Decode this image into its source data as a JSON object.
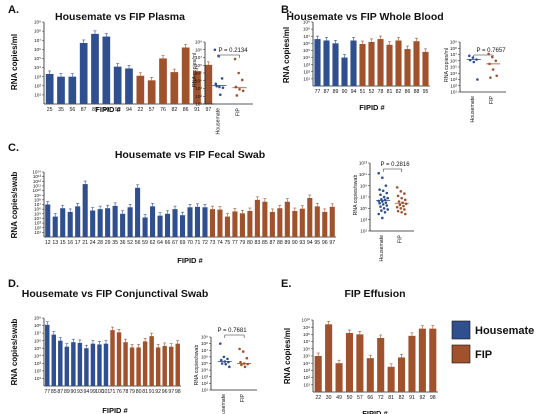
{
  "colors": {
    "housemate": "#2f4f8f",
    "fip": "#a0522d",
    "axis": "#222222"
  },
  "legend": {
    "items": [
      {
        "label": "Housemate",
        "color": "#2f4f8f"
      },
      {
        "label": "FIP",
        "color": "#a0522d"
      }
    ]
  },
  "chart_data": [
    {
      "id": "A",
      "panel_label": "A.",
      "type": "bar",
      "title": "Housemate vs FIP Plasma",
      "ylabel": "RNA copies/ml",
      "xlabel": "FIPID #",
      "log_scale": true,
      "ylim": [
        0,
        9
      ],
      "yticks": [
        "10¹",
        "10²",
        "10³",
        "10⁴",
        "10⁵",
        "10⁶",
        "10⁷",
        "10⁸",
        "10⁹"
      ],
      "categories": [
        "25",
        "35",
        "56",
        "87",
        "89",
        "90",
        "93",
        "94",
        "22",
        "57",
        "76",
        "82",
        "86",
        "91",
        "97"
      ],
      "groups": [
        "housemate",
        "housemate",
        "housemate",
        "housemate",
        "housemate",
        "housemate",
        "housemate",
        "housemate",
        "fip",
        "fip",
        "fip",
        "fip",
        "fip",
        "fip",
        "fip"
      ],
      "values": [
        3.3,
        3.0,
        3.0,
        6.7,
        7.7,
        7.4,
        4.1,
        3.9,
        3.1,
        2.6,
        5.0,
        3.5,
        6.2,
        3.6,
        4.3
      ]
    },
    {
      "id": "A2",
      "type": "scatter",
      "ylabel": "RNA copies/ml",
      "p_value": "P = 0.2134",
      "categories": [
        "Housemate",
        "FIP"
      ],
      "log_scale": true,
      "ylim": [
        1,
        9
      ],
      "yticks": [
        "10¹",
        "10²",
        "10³",
        "10⁴",
        "10⁵",
        "10⁶",
        "10⁷",
        "10⁸",
        "10⁹"
      ],
      "series": [
        {
          "name": "Housemate",
          "values": [
            8.0,
            7.2,
            4.3,
            3.6,
            3.2,
            3.1,
            3.3,
            2.2
          ],
          "median": 3.4
        },
        {
          "name": "FIP",
          "values": [
            6.8,
            5.0,
            4.1,
            3.2,
            2.9,
            2.7,
            2.1
          ],
          "median": 3.1
        }
      ]
    },
    {
      "id": "B",
      "panel_label": "B.",
      "type": "bar",
      "title": "Housemate vs FIP Whole Blood",
      "ylabel": "RNA copies/ml",
      "xlabel": "FIPID #",
      "log_scale": true,
      "ylim": [
        0,
        9
      ],
      "yticks": [
        "10¹",
        "10²",
        "10³",
        "10⁴",
        "10⁵",
        "10⁶",
        "10⁷",
        "10⁸",
        "10⁹"
      ],
      "categories": [
        "77",
        "87",
        "89",
        "90",
        "94",
        "51",
        "52",
        "78",
        "81",
        "82",
        "86",
        "88",
        "95"
      ],
      "groups": [
        "housemate",
        "housemate",
        "housemate",
        "housemate",
        "housemate",
        "fip",
        "fip",
        "fip",
        "fip",
        "fip",
        "fip",
        "fip",
        "fip"
      ],
      "values": [
        6.6,
        6.4,
        6.0,
        4.0,
        6.4,
        5.9,
        6.2,
        6.6,
        5.8,
        6.4,
        5.2,
        6.3,
        4.8
      ]
    },
    {
      "id": "B2",
      "type": "scatter",
      "ylabel": "RNA copies/ml",
      "p_value": "P = 0.7657",
      "categories": [
        "Housemate",
        "FIP"
      ],
      "log_scale": true,
      "ylim": [
        1,
        9
      ],
      "yticks": [
        "10¹",
        "10²",
        "10³",
        "10⁴",
        "10⁵",
        "10⁶",
        "10⁷",
        "10⁸",
        "10⁹"
      ],
      "series": [
        {
          "name": "Housemate",
          "values": [
            6.8,
            6.5,
            6.2,
            6.1,
            5.8,
            3.0
          ],
          "median": 6.2
        },
        {
          "name": "FIP",
          "values": [
            7.1,
            6.6,
            6.0,
            5.5,
            4.6,
            3.6,
            3.3
          ],
          "median": 5.5
        }
      ]
    },
    {
      "id": "C",
      "panel_label": "C.",
      "type": "bar",
      "title": "Housemate vs FIP Fecal Swab",
      "ylabel": "RNA copies/swab",
      "xlabel": "FIPID #",
      "log_scale": true,
      "ylim": [
        0,
        14
      ],
      "yticks": [
        "10¹",
        "10²",
        "10³",
        "10⁴",
        "10⁵",
        "10⁶",
        "10⁷",
        "10⁸",
        "10⁹",
        "10¹⁰",
        "10¹¹",
        "10¹²",
        "10¹³",
        "10¹⁴"
      ],
      "categories": [
        "12",
        "13",
        "15",
        "16",
        "17",
        "21",
        "24",
        "28",
        "29",
        "35",
        "36",
        "52",
        "56",
        "59",
        "62",
        "64",
        "66",
        "67",
        "69",
        "70",
        "71",
        "72",
        "73",
        "74",
        "75",
        "77",
        "79",
        "80",
        "83",
        "85",
        "87",
        "88",
        "89",
        "90",
        "93",
        "94",
        "95",
        "96",
        "97"
      ],
      "groups": [
        "housemate",
        "housemate",
        "housemate",
        "housemate",
        "housemate",
        "housemate",
        "housemate",
        "housemate",
        "housemate",
        "housemate",
        "housemate",
        "housemate",
        "housemate",
        "housemate",
        "housemate",
        "housemate",
        "housemate",
        "housemate",
        "housemate",
        "housemate",
        "housemate",
        "housemate",
        "fip",
        "fip",
        "fip",
        "fip",
        "fip",
        "fip",
        "fip",
        "fip",
        "fip",
        "fip",
        "fip",
        "fip",
        "fip",
        "fip",
        "fip",
        "fip",
        "fip"
      ],
      "values": [
        7.0,
        4.4,
        6.2,
        5.4,
        6.6,
        11.4,
        5.7,
        6.0,
        6.2,
        6.7,
        5.0,
        6.4,
        10.6,
        4.2,
        6.6,
        4.6,
        5.0,
        6.0,
        4.7,
        6.4,
        6.5,
        6.4,
        6.0,
        5.9,
        4.4,
        5.5,
        5.1,
        5.6,
        8.0,
        7.6,
        5.4,
        6.2,
        7.6,
        5.6,
        6.1,
        8.4,
        6.6,
        5.4,
        6.5
      ]
    },
    {
      "id": "C2",
      "type": "scatter",
      "ylabel": "RNA copies/swab",
      "p_value": "P = 0.2816",
      "categories": [
        "Housemate",
        "FIP"
      ],
      "log_scale": true,
      "ylim": [
        1,
        13
      ],
      "yticks": [
        "10¹",
        "10³",
        "10⁵",
        "10⁷",
        "10⁹",
        "10¹¹",
        "10¹³"
      ],
      "series": [
        {
          "name": "Housemate",
          "values": [
            11.2,
            10.4,
            9.0,
            8.3,
            8.1,
            7.7,
            7.4,
            7.0,
            6.8,
            6.6,
            6.5,
            6.3,
            6.2,
            6.0,
            5.9,
            5.7,
            5.5,
            5.3,
            5.0,
            4.8,
            4.6,
            4.3,
            4.0,
            3.3
          ],
          "median": 6.4
        },
        {
          "name": "FIP",
          "values": [
            8.7,
            8.0,
            7.6,
            7.2,
            6.8,
            6.5,
            6.2,
            6.0,
            5.8,
            5.6,
            5.4,
            5.2,
            5.0,
            4.8,
            4.5,
            4.3,
            4.0
          ],
          "median": 5.9
        }
      ]
    },
    {
      "id": "D",
      "panel_label": "D.",
      "type": "bar",
      "title": "Housemate vs FIP Conjunctival Swab",
      "ylabel": "RNA copies/swab",
      "xlabel": "FIPID #",
      "log_scale": true,
      "ylim": [
        0,
        9
      ],
      "yticks": [
        "10¹",
        "10²",
        "10³",
        "10⁴",
        "10⁵",
        "10⁶",
        "10⁷",
        "10⁸",
        "10⁹"
      ],
      "categories": [
        "77",
        "85",
        "87",
        "89",
        "90",
        "93",
        "94",
        "99",
        "100",
        "101",
        "71",
        "76",
        "78",
        "79",
        "80",
        "81",
        "91",
        "92",
        "96",
        "97",
        "98"
      ],
      "groups": [
        "housemate",
        "housemate",
        "housemate",
        "housemate",
        "housemate",
        "housemate",
        "housemate",
        "housemate",
        "housemate",
        "housemate",
        "fip",
        "fip",
        "fip",
        "fip",
        "fip",
        "fip",
        "fip",
        "fip",
        "fip",
        "fip",
        "fip"
      ],
      "values": [
        8.1,
        6.8,
        6.0,
        5.2,
        5.8,
        5.7,
        5.0,
        5.6,
        5.5,
        5.6,
        7.4,
        7.1,
        5.8,
        5.1,
        5.1,
        5.9,
        6.6,
        5.1,
        5.3,
        5.2,
        5.6
      ]
    },
    {
      "id": "D2",
      "type": "scatter",
      "ylabel": "RNA copies/swab",
      "p_value": "P = 0.7681",
      "categories": [
        "Housemate",
        "FIP"
      ],
      "log_scale": true,
      "ylim": [
        1,
        9
      ],
      "yticks": [
        "10¹",
        "10²",
        "10³",
        "10⁴",
        "10⁵",
        "10⁶",
        "10⁷",
        "10⁸",
        "10⁹"
      ],
      "series": [
        {
          "name": "Housemate",
          "values": [
            8.0,
            6.0,
            5.7,
            5.5,
            5.3,
            5.2,
            5.0,
            4.9,
            4.5
          ],
          "median": 5.3
        },
        {
          "name": "FIP",
          "values": [
            7.2,
            6.8,
            5.8,
            5.2,
            5.0,
            4.9,
            4.8,
            4.5
          ],
          "median": 5.0
        }
      ]
    },
    {
      "id": "E",
      "panel_label": "E.",
      "type": "bar",
      "title": "FIP Effusion",
      "ylabel": "RNA copies/ml",
      "xlabel": "FIPID #",
      "log_scale": true,
      "ylim": [
        0,
        10
      ],
      "yticks": [
        "10¹",
        "10²",
        "10³",
        "10⁴",
        "10⁵",
        "10⁶",
        "10⁷",
        "10⁸",
        "10⁹",
        "10¹⁰"
      ],
      "categories": [
        "22",
        "30",
        "49",
        "50",
        "57",
        "66",
        "72",
        "81",
        "82",
        "91",
        "92",
        "98"
      ],
      "groups": [
        "fip",
        "fip",
        "fip",
        "fip",
        "fip",
        "fip",
        "fip",
        "fip",
        "fip",
        "fip",
        "fip",
        "fip"
      ],
      "values": [
        5.0,
        9.4,
        4.0,
        8.2,
        8.0,
        4.7,
        7.5,
        3.5,
        4.8,
        7.8,
        8.8,
        8.8
      ]
    }
  ]
}
